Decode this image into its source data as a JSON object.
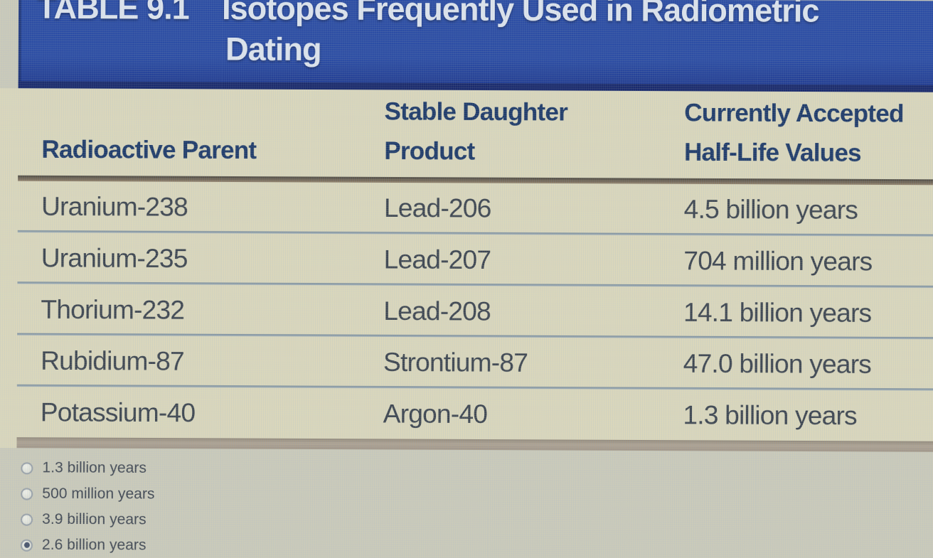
{
  "colors": {
    "page_bg": "#c9c9bb",
    "banner_blue": "#2b4ca4",
    "banner_blue_dark": "#20398e",
    "banner_edge": "#1a2a6d",
    "banner_text": "#dce3ee",
    "table_bg": "#d9d6bd",
    "header_text": "#1e3a6a",
    "row_text": "#3d4551",
    "divider": "#7f93a3",
    "heavy_rule_top": "#4e4a44",
    "heavy_rule_bottom": "#8f7f6b",
    "bottom_bar": "#ada294",
    "radio_ring": "#99a1aa",
    "radio_dot": "#47536d",
    "option_text": "#414854"
  },
  "banner": {
    "label": "TABLE 9.1",
    "title_line1": "Isotopes Frequently Used in Radiometric",
    "title_line2": "Dating"
  },
  "table": {
    "columns": [
      {
        "line1": "",
        "line2": "Radioactive Parent"
      },
      {
        "line1": "Stable Daughter",
        "line2": "Product"
      },
      {
        "line1": "Currently Accepted",
        "line2": "Half-Life Values"
      }
    ],
    "rows": [
      {
        "parent": "Uranium-238",
        "daughter": "Lead-206",
        "half_life": "4.5 billion years"
      },
      {
        "parent": "Uranium-235",
        "daughter": "Lead-207",
        "half_life": "704 million years"
      },
      {
        "parent": "Thorium-232",
        "daughter": "Lead-208",
        "half_life": "14.1 billion years"
      },
      {
        "parent": "Rubidium-87",
        "daughter": "Strontium-87",
        "half_life": "47.0 billion years"
      },
      {
        "parent": "Potassium-40",
        "daughter": "Argon-40",
        "half_life": "1.3 billion years"
      }
    ]
  },
  "question": {
    "options": [
      {
        "label": "1.3 billion years",
        "selected": false
      },
      {
        "label": "500 million years",
        "selected": false
      },
      {
        "label": "3.9 billion years",
        "selected": false
      },
      {
        "label": "2.6 billion years",
        "selected": true
      }
    ]
  }
}
